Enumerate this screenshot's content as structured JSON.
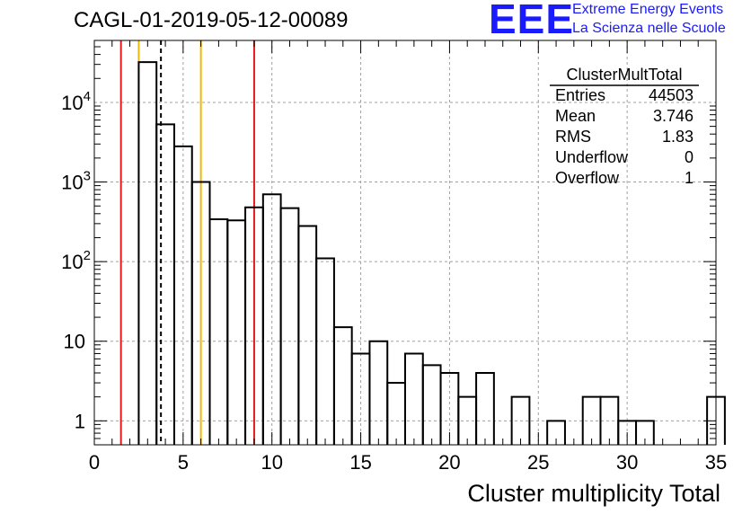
{
  "title": "CAGL-01-2019-05-12-00089",
  "logo": {
    "mark": "EEE",
    "line1": "Extreme Energy Events",
    "line2": "La Scienza nelle Scuole",
    "color": "#1a1aff"
  },
  "chart_data": {
    "type": "histogram",
    "xlabel": "Cluster multiplicity Total",
    "ylabel": "",
    "xlim": [
      0,
      35
    ],
    "ylim": [
      0.5,
      60000
    ],
    "ylog": true,
    "grid": true,
    "bin_width": 1,
    "x_ticks": [
      "0",
      "5",
      "10",
      "15",
      "20",
      "25",
      "30",
      "35"
    ],
    "y_ticks": [
      {
        "value": 1,
        "base": "1",
        "exp": ""
      },
      {
        "value": 10,
        "base": "10",
        "exp": ""
      },
      {
        "value": 100,
        "base": "10",
        "exp": "2"
      },
      {
        "value": 1000,
        "base": "10",
        "exp": "3"
      },
      {
        "value": 10000,
        "base": "10",
        "exp": "4"
      }
    ],
    "bins": [
      {
        "x0": 2.5,
        "count": 32000
      },
      {
        "x0": 3.5,
        "count": 5300
      },
      {
        "x0": 4.5,
        "count": 2800
      },
      {
        "x0": 5.5,
        "count": 1000
      },
      {
        "x0": 6.5,
        "count": 340
      },
      {
        "x0": 7.5,
        "count": 330
      },
      {
        "x0": 8.5,
        "count": 480
      },
      {
        "x0": 9.5,
        "count": 700
      },
      {
        "x0": 10.5,
        "count": 470
      },
      {
        "x0": 11.5,
        "count": 280
      },
      {
        "x0": 12.5,
        "count": 110
      },
      {
        "x0": 13.5,
        "count": 15
      },
      {
        "x0": 14.5,
        "count": 7
      },
      {
        "x0": 15.5,
        "count": 10
      },
      {
        "x0": 16.5,
        "count": 3
      },
      {
        "x0": 17.5,
        "count": 7
      },
      {
        "x0": 18.5,
        "count": 5
      },
      {
        "x0": 19.5,
        "count": 4
      },
      {
        "x0": 20.5,
        "count": 2
      },
      {
        "x0": 21.5,
        "count": 4
      },
      {
        "x0": 23.5,
        "count": 2
      },
      {
        "x0": 25.5,
        "count": 1
      },
      {
        "x0": 27.5,
        "count": 2
      },
      {
        "x0": 28.5,
        "count": 2
      },
      {
        "x0": 29.5,
        "count": 1
      },
      {
        "x0": 30.5,
        "count": 1
      },
      {
        "x0": 34.5,
        "count": 2
      }
    ],
    "vertical_lines": [
      {
        "x": 1.5,
        "color": "#e31a1c",
        "style": "solid"
      },
      {
        "x": 2.5,
        "color": "#f5b800",
        "style": "solid"
      },
      {
        "x": 3.75,
        "color": "#000000",
        "style": "dashed"
      },
      {
        "x": 6.0,
        "color": "#f5b800",
        "style": "solid"
      },
      {
        "x": 9.0,
        "color": "#e31a1c",
        "style": "solid"
      }
    ],
    "stats": {
      "title": "ClusterMultTotal",
      "rows": [
        {
          "label": "Entries",
          "value": "44503"
        },
        {
          "label": "Mean",
          "value": "3.746"
        },
        {
          "label": "RMS",
          "value": "1.83"
        },
        {
          "label": "Underflow",
          "value": "0"
        },
        {
          "label": "Overflow",
          "value": "1"
        }
      ]
    }
  }
}
